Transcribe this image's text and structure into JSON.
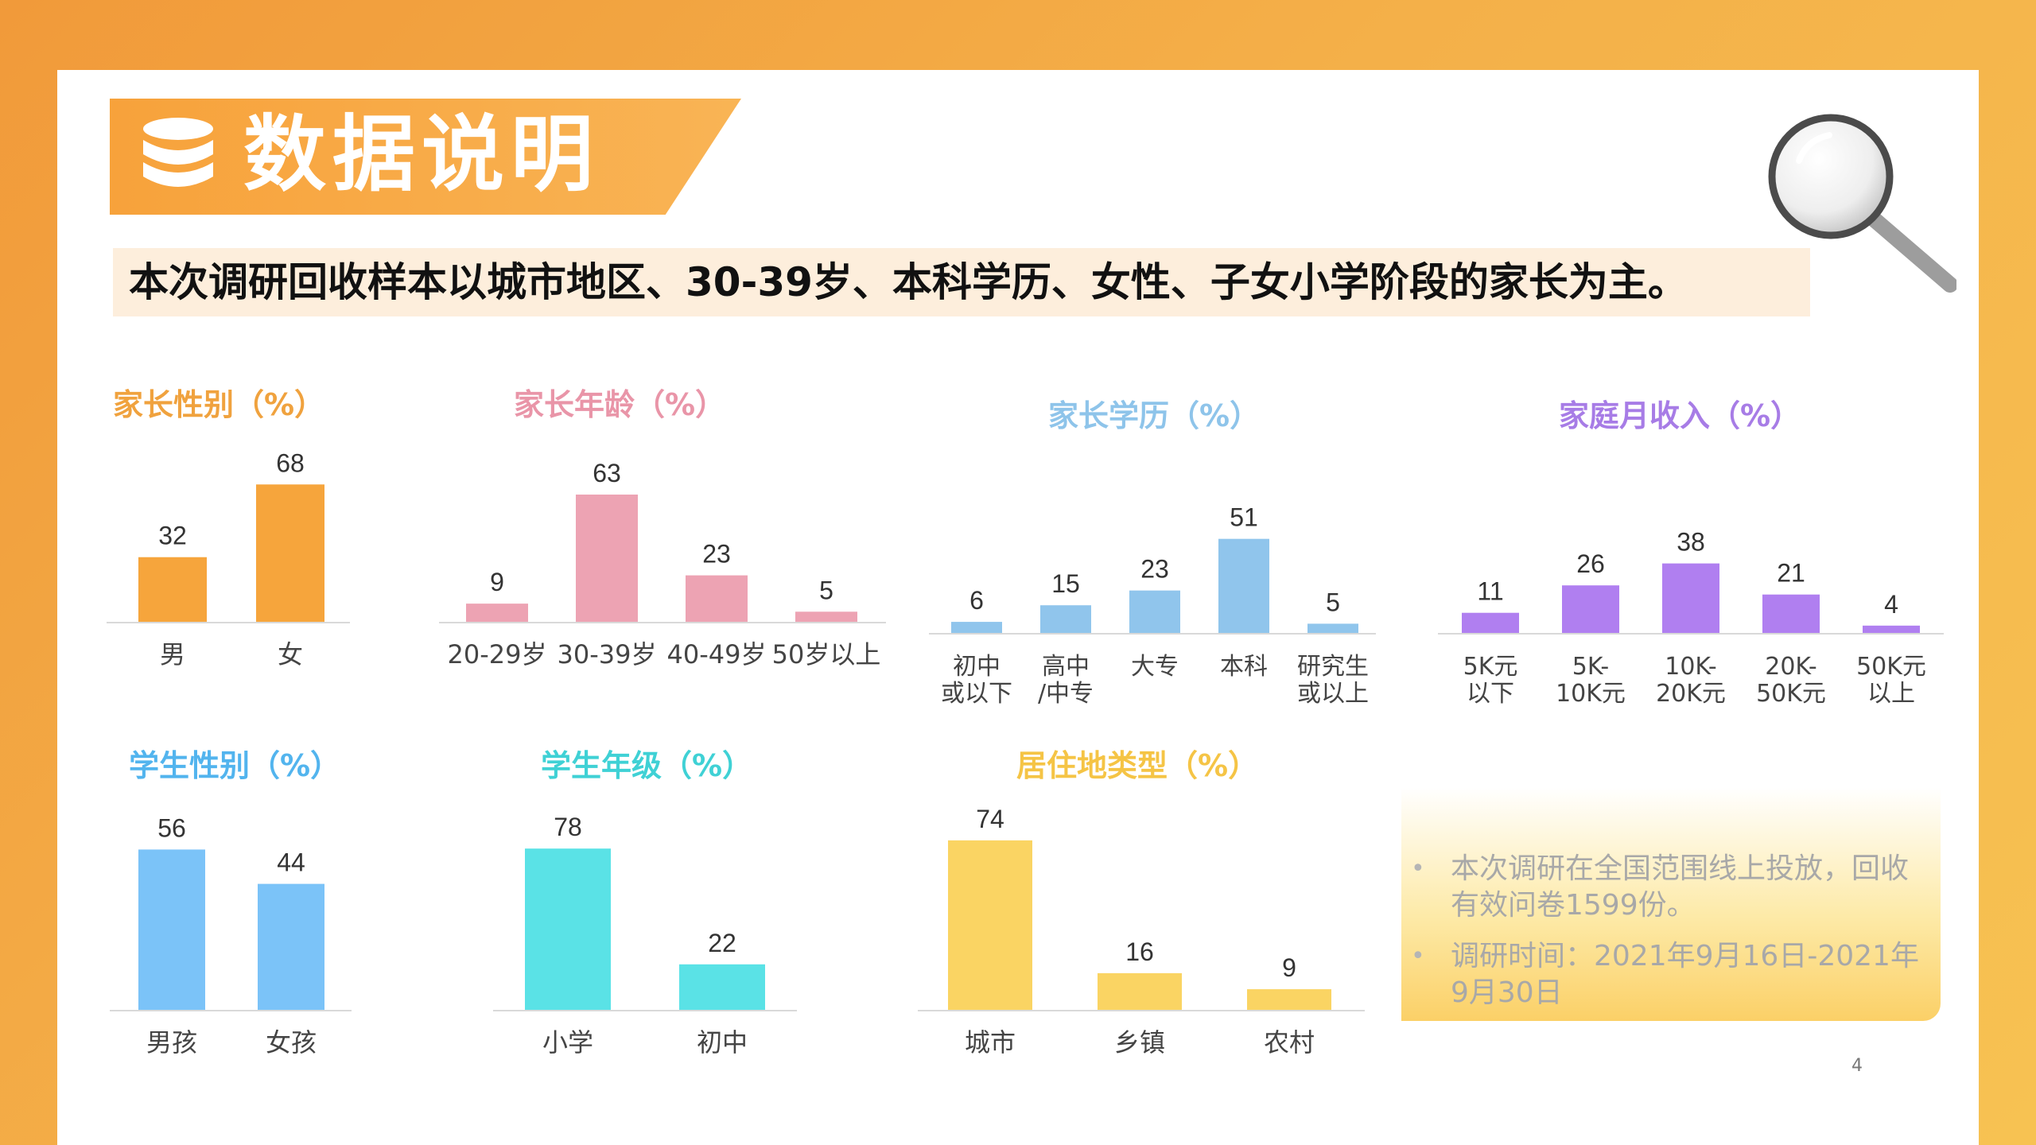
{
  "header": {
    "title": "数据说明",
    "icon": "database-icon",
    "summary": "本次调研回收样本以城市地区、30-39岁、本科学历、女性、子女小学阶段的家长为主。"
  },
  "notes": [
    "本次调研在全国范围线上投放，回收有效问卷1599份。",
    "调研时间：2021年9月16日-2021年9月30日"
  ],
  "page_number": "4",
  "chart_data": [
    {
      "type": "bar",
      "title": "家长性别（%）",
      "color": "#f6a53c",
      "title_color": "#f0a23e",
      "categories": [
        "男",
        "女"
      ],
      "values": [
        32,
        68
      ]
    },
    {
      "type": "bar",
      "title": "家长年龄（%）",
      "color": "#eda3b3",
      "title_color": "#e995a8",
      "categories": [
        "20-29岁",
        "30-39岁",
        "40-49岁",
        "50岁以上"
      ],
      "values": [
        9,
        63,
        23,
        5
      ]
    },
    {
      "type": "bar",
      "title": "家长学历（%）",
      "color": "#90c5ec",
      "title_color": "#8ec4ea",
      "categories": [
        "初中\n或以下",
        "高中\n/中专",
        "大专",
        "本科",
        "研究生\n或以上"
      ],
      "values": [
        6,
        15,
        23,
        51,
        5
      ]
    },
    {
      "type": "bar",
      "title": "家庭月收入（%）",
      "color": "#b07ff0",
      "title_color": "#a77ce6",
      "categories": [
        "5K元\n以下",
        "5K-\n10K元",
        "10K-\n20K元",
        "20K-\n50K元",
        "50K元\n以上"
      ],
      "values": [
        11,
        26,
        38,
        21,
        4
      ]
    },
    {
      "type": "bar",
      "title": "学生性别（%）",
      "color": "#7bc3f8",
      "title_color": "#52b4ee",
      "categories": [
        "男孩",
        "女孩"
      ],
      "values": [
        56,
        44
      ]
    },
    {
      "type": "bar",
      "title": "学生年级（%）",
      "color": "#5ae2e6",
      "title_color": "#3fd1d5",
      "categories": [
        "小学",
        "初中"
      ],
      "values": [
        78,
        22
      ]
    },
    {
      "type": "bar",
      "title": "居住地类型（%）",
      "color": "#fad463",
      "title_color": "#f5c445",
      "categories": [
        "城市",
        "乡镇",
        "农村"
      ],
      "values": [
        74,
        16,
        9
      ]
    }
  ]
}
